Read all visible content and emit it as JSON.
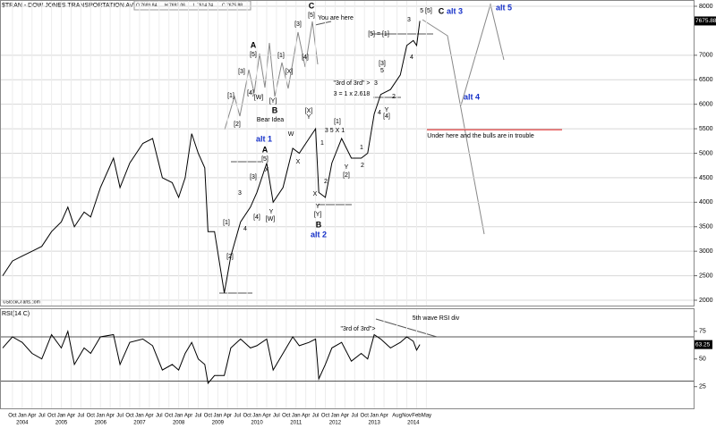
{
  "chart_data": {
    "type": "line",
    "title": "$TRAN - DOW JONES TRANSPORTATION AVERAGE,W",
    "header_stats": [
      "O 7689.84",
      "H 7693.06",
      "L 7614.24",
      "C 7675.88"
    ],
    "copyright": "©StockCharts.com",
    "last_value_label": "7675.88",
    "color": "#000000",
    "xlim": [
      "2003-07",
      "2021-03"
    ],
    "x": [
      "2003-07",
      "2003-10",
      "2004-01",
      "2004-04",
      "2004-07",
      "2004-10",
      "2005-01",
      "2005-03",
      "2005-05",
      "2005-08",
      "2005-10",
      "2006-01",
      "2006-05",
      "2006-07",
      "2006-10",
      "2007-02",
      "2007-05",
      "2007-08",
      "2007-11",
      "2008-01",
      "2008-03",
      "2008-05",
      "2008-07",
      "2008-09",
      "2008-10",
      "2008-12",
      "2009-03",
      "2009-05",
      "2009-08",
      "2009-11",
      "2010-01",
      "2010-04",
      "2010-06",
      "2010-09",
      "2010-12",
      "2011-02",
      "2011-05",
      "2011-07",
      "2011-08",
      "2011-10",
      "2011-12",
      "2012-03",
      "2012-06",
      "2012-09",
      "2012-11",
      "2013-01",
      "2013-03",
      "2013-06",
      "2013-09",
      "2013-11",
      "2014-01",
      "2014-02",
      "2014-03"
    ],
    "values": [
      2500,
      2800,
      2900,
      3000,
      3100,
      3400,
      3600,
      3900,
      3500,
      3800,
      3700,
      4300,
      4900,
      4300,
      4800,
      5200,
      5300,
      4500,
      4400,
      4100,
      4500,
      5400,
      5000,
      4700,
      3400,
      3400,
      2150,
      2900,
      3600,
      3900,
      4200,
      4800,
      4000,
      4300,
      5100,
      5000,
      5300,
      5500,
      4200,
      4100,
      4800,
      5300,
      4900,
      4900,
      5000,
      5800,
      6200,
      6300,
      6600,
      7200,
      7300,
      7200,
      7700
    ],
    "ylim": [
      2000,
      8000
    ],
    "yticks": [
      2000,
      2500,
      3000,
      3500,
      4000,
      4500,
      5000,
      5500,
      6000,
      6500,
      7000,
      8000
    ],
    "grid": true,
    "rsi": {
      "label": "RSI(14,C)",
      "color": "#000000",
      "last_value_label": "63.25",
      "ylim": [
        7,
        95
      ],
      "yticks": [
        25,
        50,
        75
      ],
      "levels": [
        70,
        30
      ],
      "values": [
        60,
        70,
        65,
        55,
        50,
        72,
        60,
        75,
        45,
        60,
        55,
        70,
        72,
        45,
        65,
        68,
        62,
        40,
        45,
        40,
        55,
        65,
        50,
        45,
        28,
        35,
        35,
        60,
        68,
        60,
        62,
        68,
        40,
        55,
        70,
        62,
        65,
        68,
        32,
        45,
        60,
        65,
        48,
        55,
        50,
        72,
        68,
        60,
        65,
        70,
        66,
        58,
        63
      ]
    },
    "xticks": [
      {
        "value": "2003-10",
        "label": "Oct"
      },
      {
        "value": "2004-01",
        "label": "Jan"
      },
      {
        "value": "2004-04",
        "label": "Apr"
      },
      {
        "value": "2004-07",
        "label": "Jul"
      },
      {
        "value": "2004-10",
        "label": "Oct"
      },
      {
        "value": "2005-01",
        "label": "Jan"
      },
      {
        "value": "2005-04",
        "label": "Apr"
      },
      {
        "value": "2005-07",
        "label": "Jul"
      },
      {
        "value": "2005-10",
        "label": "Oct"
      },
      {
        "value": "2006-01",
        "label": "Jan"
      },
      {
        "value": "2006-04",
        "label": "Apr"
      },
      {
        "value": "2006-07",
        "label": "Jul"
      },
      {
        "value": "2006-10",
        "label": "Oct"
      },
      {
        "value": "2007-01",
        "label": "Jan"
      },
      {
        "value": "2007-04",
        "label": "Apr"
      },
      {
        "value": "2007-07",
        "label": "Jul"
      },
      {
        "value": "2007-10",
        "label": "Oct"
      },
      {
        "value": "2008-01",
        "label": "Jan"
      },
      {
        "value": "2008-04",
        "label": "Apr"
      },
      {
        "value": "2008-07",
        "label": "Jul"
      },
      {
        "value": "2008-10",
        "label": "Oct"
      },
      {
        "value": "2009-01",
        "label": "Jan"
      },
      {
        "value": "2009-04",
        "label": "Apr"
      },
      {
        "value": "2009-07",
        "label": "Jul"
      },
      {
        "value": "2009-10",
        "label": "Oct"
      },
      {
        "value": "2010-01",
        "label": "Jan"
      },
      {
        "value": "2010-04",
        "label": "Apr"
      },
      {
        "value": "2010-07",
        "label": "Jul"
      },
      {
        "value": "2010-10",
        "label": "Oct"
      },
      {
        "value": "2011-01",
        "label": "Jan"
      },
      {
        "value": "2011-04",
        "label": "Apr"
      },
      {
        "value": "2011-07",
        "label": "Jul"
      },
      {
        "value": "2011-10",
        "label": "Oct"
      },
      {
        "value": "2012-01",
        "label": "Jan"
      },
      {
        "value": "2012-04",
        "label": "Apr"
      },
      {
        "value": "2012-07",
        "label": "Jul"
      },
      {
        "value": "2012-10",
        "label": "Oct"
      },
      {
        "value": "2013-01",
        "label": "Jan"
      },
      {
        "value": "2013-04",
        "label": "Apr"
      },
      {
        "value": "2013-08",
        "label": "Aug"
      },
      {
        "value": "2013-11",
        "label": "Nov"
      },
      {
        "value": "2014-02",
        "label": "Feb"
      },
      {
        "value": "2014-05",
        "label": "May"
      }
    ],
    "year_labels": [
      "2004",
      "2005",
      "2006",
      "2007",
      "2008",
      "2009",
      "2010",
      "2011",
      "2012",
      "2013",
      "2014"
    ],
    "annotations": [
      "C",
      "[5]",
      "You are here",
      "alt 3",
      "alt 5",
      "5 [5]",
      "C",
      "[5] = [1]",
      "A",
      "[5]",
      "[3]",
      "[4]",
      "[1]",
      "[W]",
      "[Y]",
      "[2]",
      "[1]",
      "[3]",
      "[4]",
      "[X]",
      "B",
      "Bear Idea",
      "alt 1",
      "A",
      "[5]",
      "[3]",
      "[4]",
      "[W]",
      "X",
      "W",
      "X",
      "[X]",
      "Y",
      "[1]",
      "3 5 X 1",
      "B",
      "alt 2",
      "[Y]",
      "Y",
      "X",
      "2",
      "[2]",
      "Y",
      "2",
      "\"3rd of 3rd\" >",
      "3 = 1 x 2.618",
      "alt 4",
      "Under here and the bulls are in trouble",
      "[3]",
      "5",
      "3",
      "[4]",
      "Y",
      "4",
      "2",
      "4",
      "3",
      "5th wave RSI div",
      "\"3rd of 3rd\">",
      "[1]",
      "[2]",
      "3",
      "4",
      "1",
      "1",
      "Y"
    ]
  }
}
